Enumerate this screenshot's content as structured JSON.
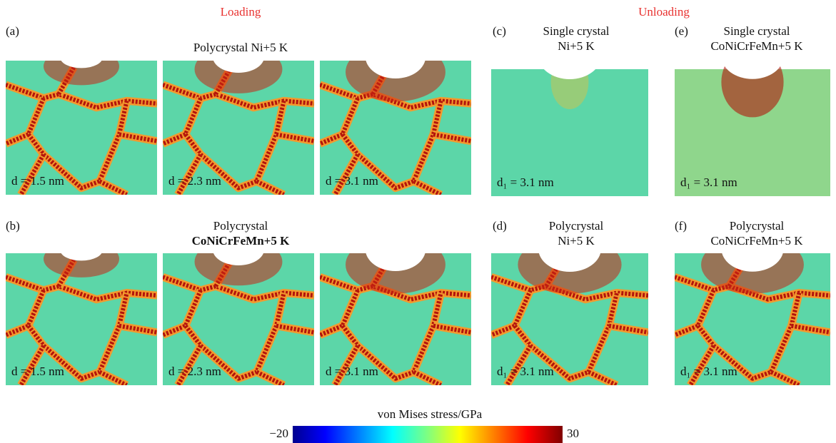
{
  "headers": {
    "loading": "Loading",
    "unloading": "Unloading"
  },
  "panels": [
    {
      "tag": "(a)",
      "title": [
        "Polycrystal Ni+5 K"
      ],
      "images": [
        "d = 1.5 nm",
        "d = 2.3 nm",
        "d = 3.1 nm"
      ]
    },
    {
      "tag": "(b)",
      "title": [
        "Polycrystal",
        "CoNiCrFeMn+5 K"
      ],
      "images": [
        "d = 1.5 nm",
        "d = 2.3 nm",
        "d = 3.1 nm"
      ]
    },
    {
      "tag": "(c)",
      "title": [
        "Single crystal",
        "Ni+5 K"
      ],
      "images": [
        "d₁ = 3.1 nm"
      ]
    },
    {
      "tag": "(d)",
      "title": [
        "Polycrystal",
        "Ni+5 K"
      ],
      "images": [
        "d₁ = 3.1 nm"
      ]
    },
    {
      "tag": "(e)",
      "title": [
        "Single crystal",
        "CoNiCrFeMn+5 K"
      ],
      "images": [
        "d₁ = 3.1 nm"
      ]
    },
    {
      "tag": "(f)",
      "title": [
        "Polycrystal",
        "CoNiCrFeMn+5 K"
      ],
      "images": [
        "d₁ = 3.1 nm"
      ]
    }
  ],
  "colorbar": {
    "title": "von Mises stress/GPa",
    "min": {
      "value": -20,
      "label": "−20"
    },
    "max": 30
  }
}
